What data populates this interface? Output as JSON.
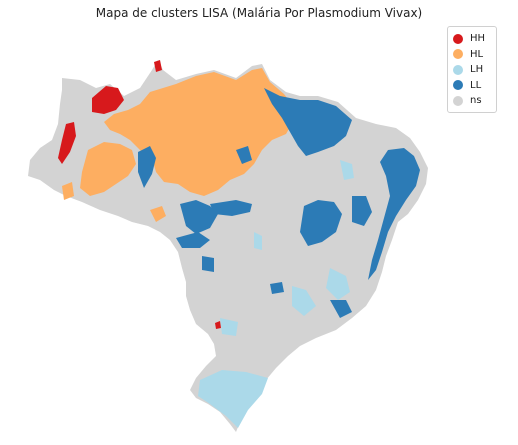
{
  "title": "Mapa de clusters LISA (Malária Por Plasmodium Vivax)",
  "legend": {
    "items": [
      {
        "label": "HH",
        "color": "#d7191c"
      },
      {
        "label": "HL",
        "color": "#fdae61"
      },
      {
        "label": "LH",
        "color": "#abd9e9"
      },
      {
        "label": "LL",
        "color": "#2c7bb6"
      },
      {
        "label": "ns",
        "color": "#d3d3d3"
      }
    ]
  },
  "colors": {
    "HH": "#d7191c",
    "HL": "#fdae61",
    "LH": "#abd9e9",
    "LL": "#2c7bb6",
    "ns": "#d3d3d3"
  }
}
